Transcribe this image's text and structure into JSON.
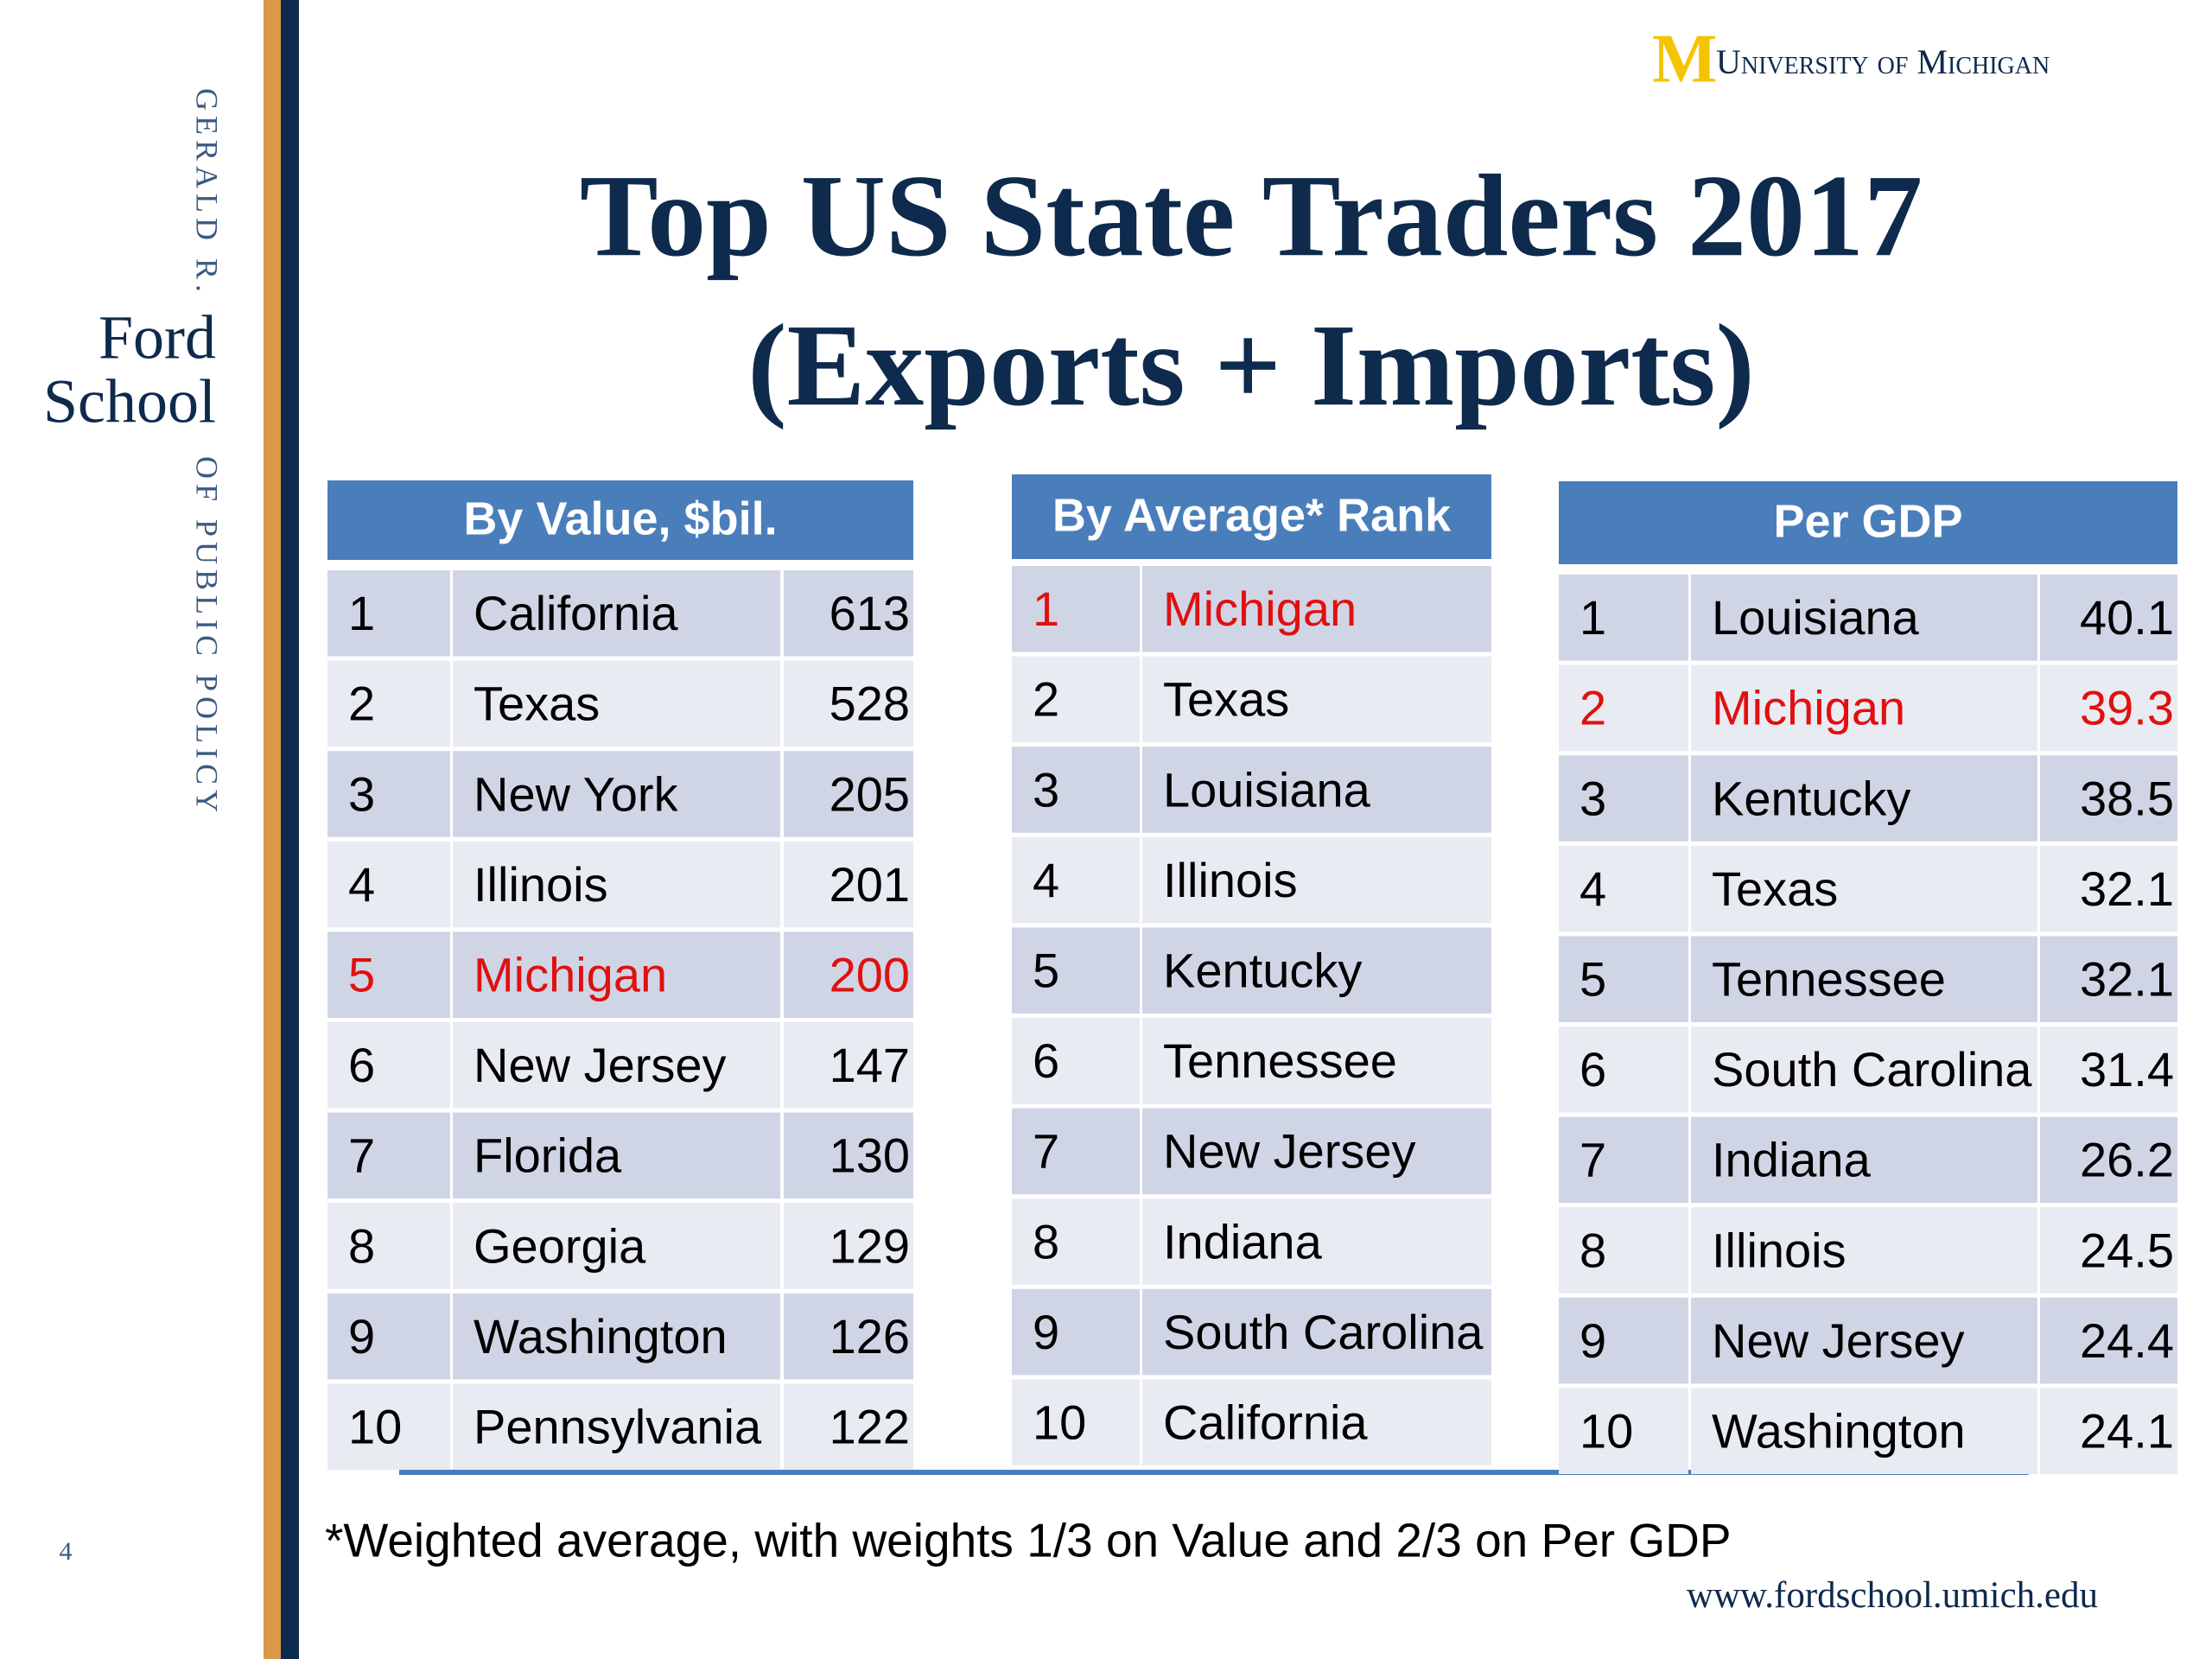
{
  "sidebar": {
    "top": "GERALD R.",
    "name_lines": [
      "Ford",
      "School"
    ],
    "bottom": "OF PUBLIC POLICY",
    "page": "4"
  },
  "logo": {
    "letter": "M",
    "text": "University of Michigan"
  },
  "title_lines": [
    "Top US State Traders 2017",
    "(Exports + Imports)"
  ],
  "highlight_color": "#e01010",
  "tables": [
    {
      "header": "By Value, $bil.",
      "highlight": 4,
      "rows": [
        [
          1,
          "California",
          613
        ],
        [
          2,
          "Texas",
          528
        ],
        [
          3,
          "New York",
          205
        ],
        [
          4,
          "Illinois",
          201
        ],
        [
          5,
          "Michigan",
          200
        ],
        [
          6,
          "New Jersey",
          147
        ],
        [
          7,
          "Florida",
          130
        ],
        [
          8,
          "Georgia",
          129
        ],
        [
          9,
          "Washington",
          126
        ],
        [
          10,
          "Pennsylvania",
          122
        ]
      ]
    },
    {
      "header": "By Average* Rank",
      "highlight": 0,
      "rows": [
        [
          1,
          "Michigan"
        ],
        [
          2,
          "Texas"
        ],
        [
          3,
          "Louisiana"
        ],
        [
          4,
          "Illinois"
        ],
        [
          5,
          "Kentucky"
        ],
        [
          6,
          "Tennessee"
        ],
        [
          7,
          "New Jersey"
        ],
        [
          8,
          "Indiana"
        ],
        [
          9,
          "South Carolina"
        ],
        [
          10,
          "California"
        ]
      ]
    },
    {
      "header": "Per GDP",
      "highlight": 1,
      "rows": [
        [
          1,
          "Louisiana",
          40.1
        ],
        [
          2,
          "Michigan",
          39.3
        ],
        [
          3,
          "Kentucky",
          38.5
        ],
        [
          4,
          "Texas",
          32.1
        ],
        [
          5,
          "Tennessee",
          32.1
        ],
        [
          6,
          "South Carolina",
          31.4
        ],
        [
          7,
          "Indiana",
          26.2
        ],
        [
          8,
          "Illinois",
          24.5
        ],
        [
          9,
          "New Jersey",
          24.4
        ],
        [
          10,
          "Washington",
          24.1
        ]
      ]
    }
  ],
  "footnote": "*Weighted average, with weights 1/3 on Value and 2/3 on Per GDP",
  "url": "www.fordschool.umich.edu"
}
